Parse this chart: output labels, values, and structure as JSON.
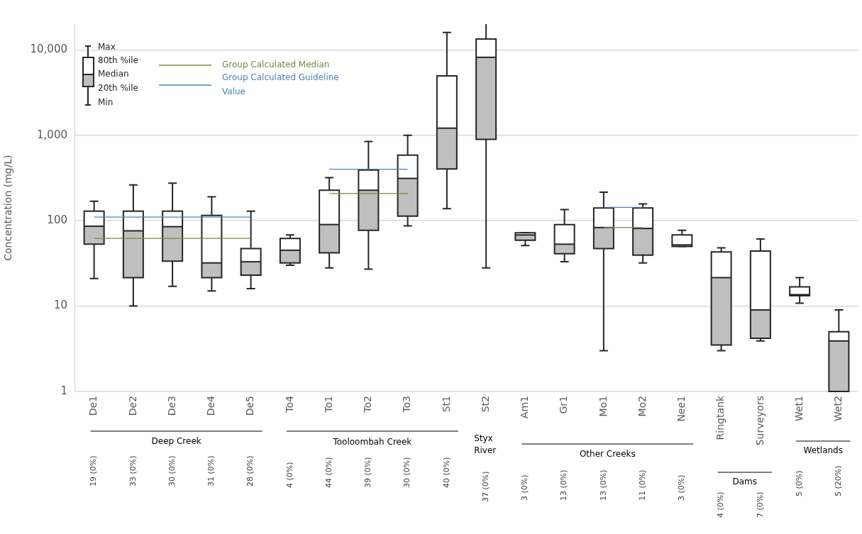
{
  "chart_data": {
    "type": "box",
    "ylabel": "Concentration (mg/L)",
    "categories": [
      "De1",
      "De2",
      "De3",
      "De4",
      "De5",
      "To4",
      "To1",
      "To2",
      "To3",
      "St1",
      "St2",
      "Am1",
      "Gr1",
      "Mo1",
      "Mo2",
      "Nee1",
      "Ringtank",
      "Surveyors",
      "Wet1",
      "Wet2"
    ],
    "boxes": [
      {
        "low": 21,
        "q1": 53,
        "median": 86,
        "q3": 129,
        "high": 169
      },
      {
        "low": 10,
        "q1": 21.5,
        "median": 76,
        "q3": 129,
        "high": 262
      },
      {
        "low": 17,
        "q1": 33.5,
        "median": 85,
        "q3": 129,
        "high": 275
      },
      {
        "low": 15,
        "q1": 21.5,
        "median": 32,
        "q3": 115,
        "high": 190
      },
      {
        "low": 16,
        "q1": 23,
        "median": 33,
        "q3": 47,
        "high": 129
      },
      {
        "low": 30,
        "q1": 32,
        "median": 45,
        "q3": 62,
        "high": 68
      },
      {
        "low": 28,
        "q1": 42,
        "median": 90,
        "q3": 227,
        "high": 318
      },
      {
        "low": 27,
        "q1": 77,
        "median": 227,
        "q3": 392,
        "high": 843
      },
      {
        "low": 87,
        "q1": 113,
        "median": 312,
        "q3": 586,
        "high": 1000
      },
      {
        "low": 138,
        "q1": 403,
        "median": 1210,
        "q3": 4950,
        "high": 16000
      },
      {
        "low": 28,
        "q1": 893,
        "median": 8170,
        "q3": 13400,
        "high": 20000
      },
      {
        "low": 51,
        "q1": 59,
        "median": 68,
        "q3": 72,
        "high": 72
      },
      {
        "low": 33,
        "q1": 41,
        "median": 53,
        "q3": 90,
        "high": 135
      },
      {
        "low": 3,
        "q1": 47,
        "median": 83,
        "q3": 141,
        "high": 215
      },
      {
        "low": 32,
        "q1": 39.5,
        "median": 81,
        "q3": 141,
        "high": 157
      },
      {
        "low": 50,
        "q1": 50,
        "median": 52,
        "q3": 68,
        "high": 77
      },
      {
        "low": 3,
        "q1": 3.5,
        "median": 21.5,
        "q3": 43,
        "high": 48
      },
      {
        "low": 3.9,
        "q1": 4.2,
        "median": 9,
        "q3": 44,
        "high": 61
      },
      {
        "low": 10.8,
        "q1": 13.2,
        "median": 13.6,
        "q3": 16.8,
        "high": 21.5
      },
      {
        "low": 1,
        "q1": 1,
        "median": 3.9,
        "q3": 5,
        "high": 9
      }
    ],
    "series": [
      {
        "name": "Group Calculated Median",
        "type": "line",
        "color": "#6b8e3a",
        "values": [
          62,
          62,
          62,
          62,
          62,
          null,
          208,
          208,
          208,
          null,
          null,
          null,
          null,
          83,
          83,
          null,
          null,
          null,
          null,
          null
        ]
      },
      {
        "name": "Group Calculated Guideline Value",
        "type": "line",
        "color": "#4f81bd",
        "values": [
          110,
          110,
          110,
          110,
          110,
          null,
          400,
          400,
          400,
          null,
          null,
          null,
          null,
          143,
          143,
          null,
          null,
          null,
          null,
          null
        ]
      }
    ],
    "color": "#bfbfbf",
    "log": true,
    "ylim": [
      1,
      20000
    ],
    "yticks": [
      1,
      10,
      100,
      {
        "value": 1000,
        "label": "1,000"
      },
      {
        "value": 10000,
        "label": "10,000"
      }
    ],
    "grid": "y",
    "legend": "top left",
    "marker": "none",
    "line_style": "solid",
    "annotations": [
      "Max",
      "80th %ile",
      "Median",
      "20th %ile",
      "Min",
      "Deep Creek",
      "Tooloombah Creek",
      "Styx River",
      "Other Creeks",
      "Dams",
      "Wetlands",
      "19 (0%)",
      "33 (0%)",
      "30 (0%)",
      "31 (0%)",
      "28 (0%)",
      "4 (0%)",
      "44 (0%)",
      "39 (0%)",
      "30 (0%)",
      "40 (0%)",
      "37 (0%)",
      "3 (0%)",
      "13 (0%)",
      "13 (0%)",
      "11 (0%)",
      "3 (0%)",
      "4 (0%)",
      "7 (0%)",
      "5 (0%)",
      "5 (20%)"
    ]
  }
}
